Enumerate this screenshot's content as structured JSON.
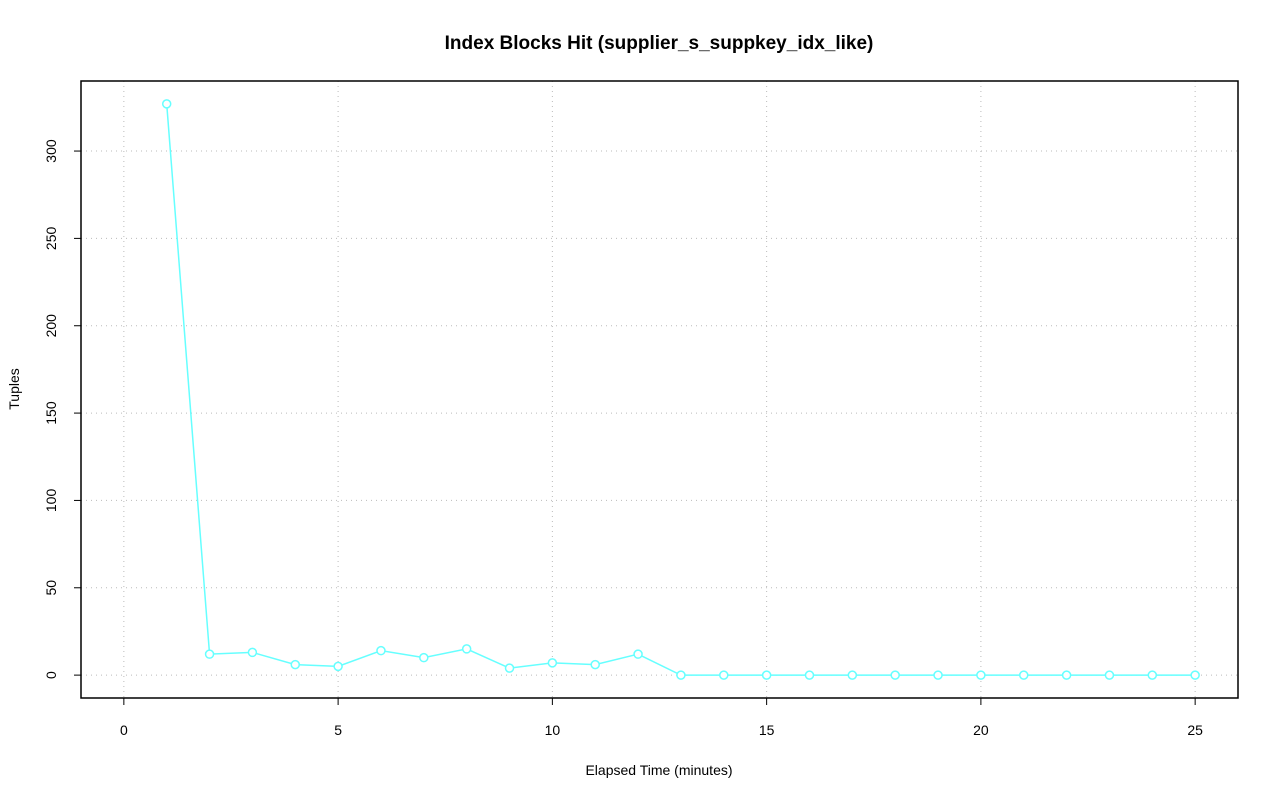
{
  "chart_data": {
    "type": "line",
    "title": "Index Blocks Hit (supplier_s_suppkey_idx_like)",
    "x_label": "Elapsed Time (minutes)",
    "y_label": "Tuples",
    "x": [
      1,
      2,
      3,
      4,
      5,
      6,
      7,
      8,
      9,
      10,
      11,
      12,
      13,
      14,
      15,
      16,
      17,
      18,
      19,
      20,
      21,
      22,
      23,
      24,
      25
    ],
    "series": [
      {
        "color": "#66ffff",
        "values": [
          327,
          12,
          13,
          6,
          5,
          14,
          10,
          15,
          4,
          7,
          6,
          12,
          0,
          0,
          0,
          0,
          0,
          0,
          0,
          0,
          0,
          0,
          0,
          0,
          0
        ]
      }
    ],
    "xlim": [
      -1,
      26
    ],
    "ylim": [
      -13.1,
      340.1
    ],
    "xticks": [
      0,
      5,
      10,
      15,
      20,
      25
    ],
    "yticks": [
      0,
      50,
      100,
      150,
      200,
      250,
      300
    ],
    "grid": true
  }
}
